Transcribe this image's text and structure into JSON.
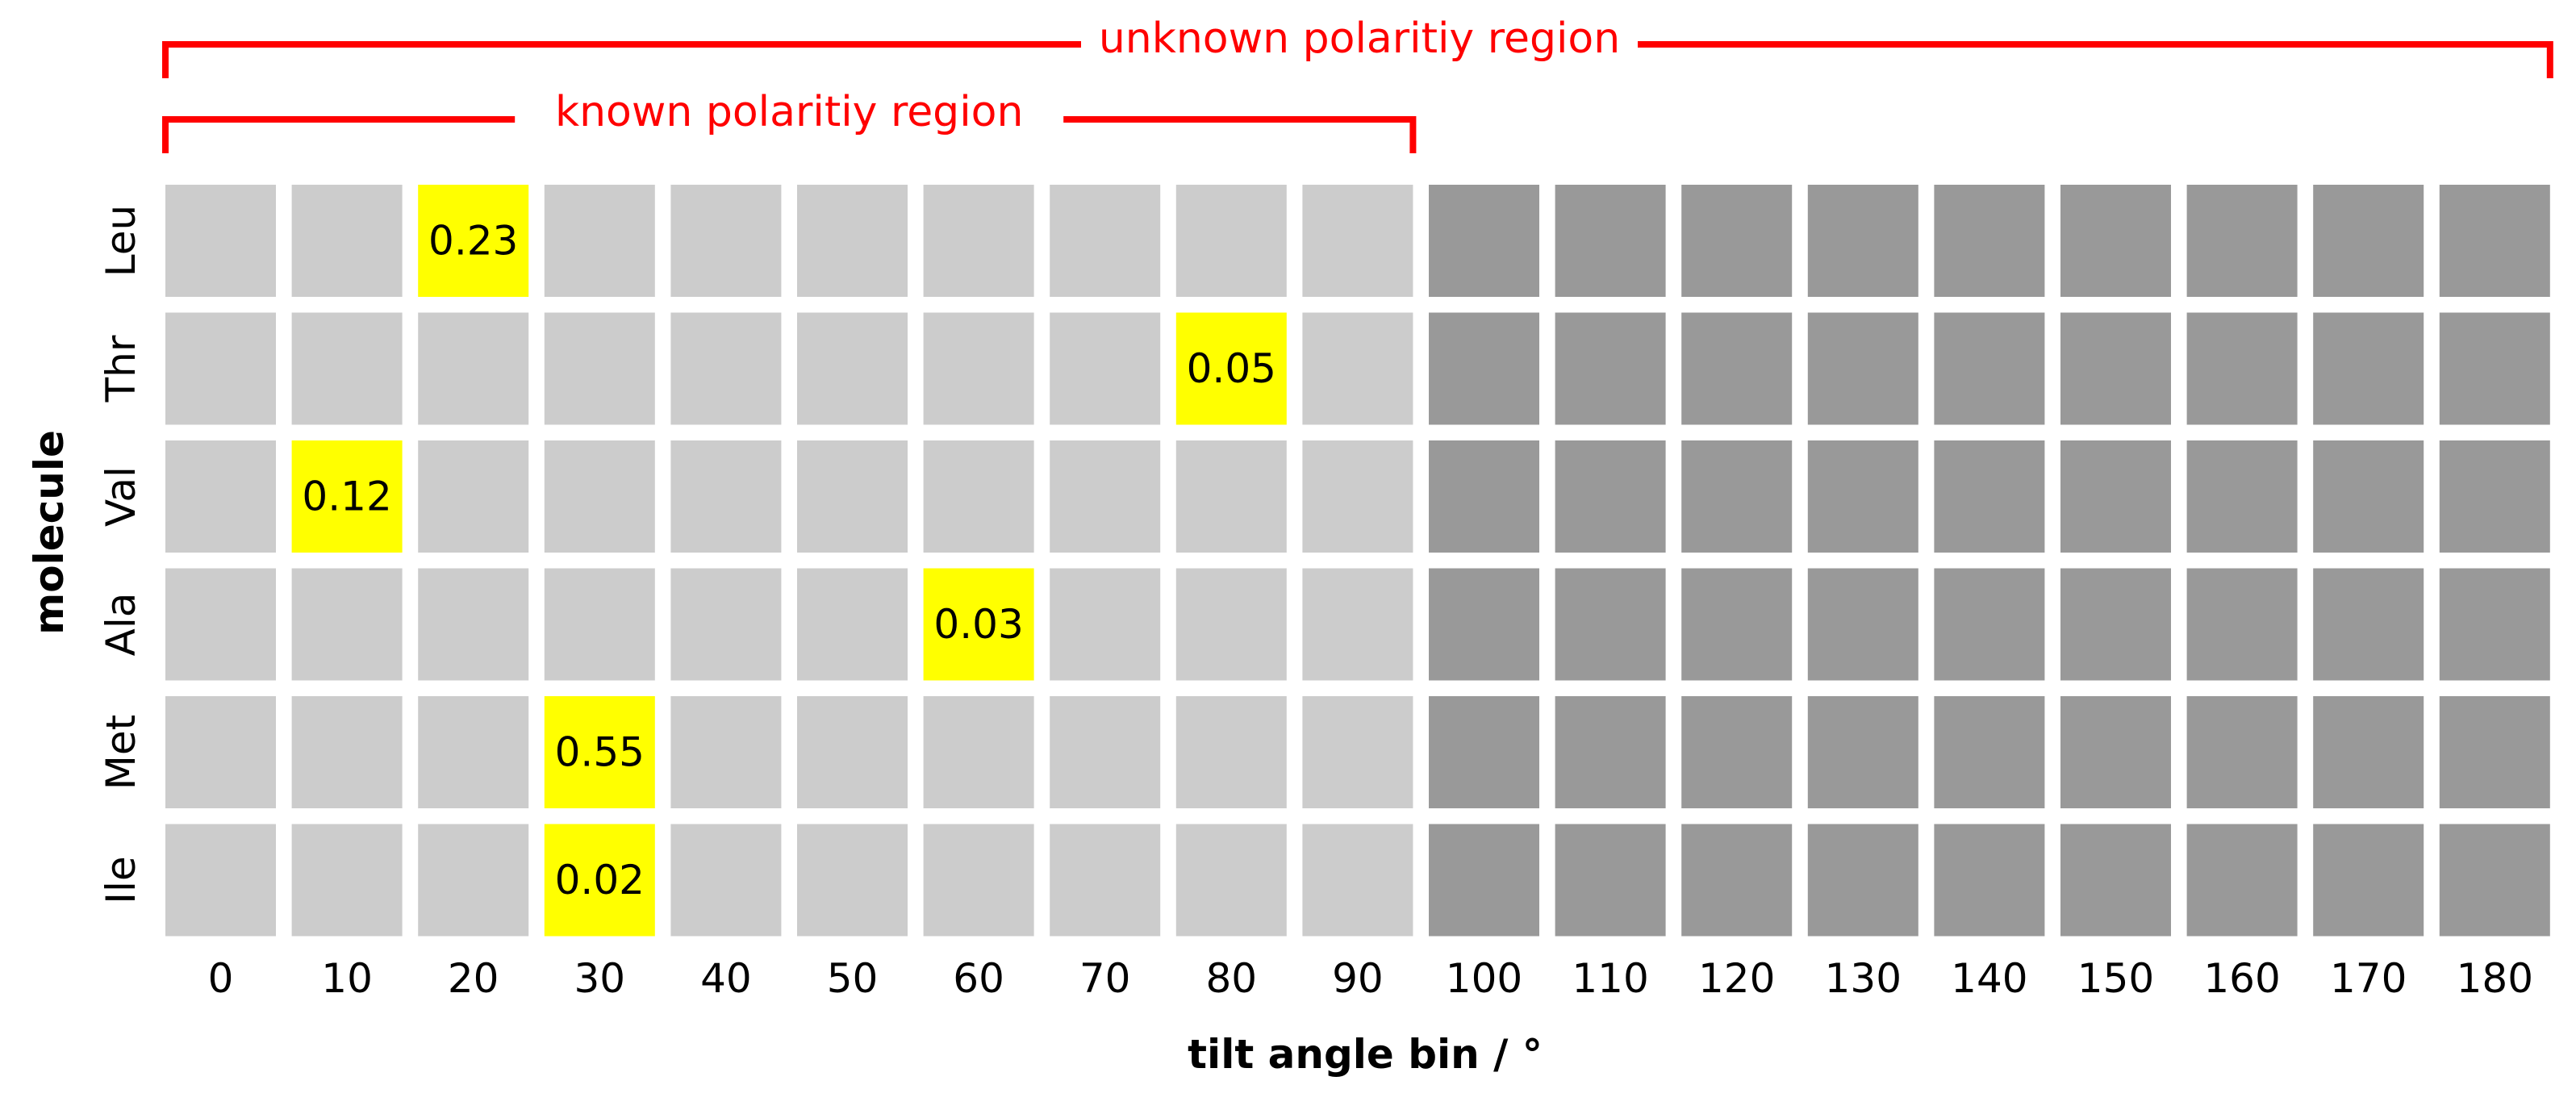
{
  "chart_data": {
    "type": "heatmap",
    "xlabel": "tilt angle bin / °",
    "ylabel": "molecule",
    "x_categories": [
      "0",
      "10",
      "20",
      "30",
      "40",
      "50",
      "60",
      "70",
      "80",
      "90",
      "100",
      "110",
      "120",
      "130",
      "140",
      "150",
      "160",
      "170",
      "180"
    ],
    "y_categories": [
      "Leu",
      "Thr",
      "Val",
      "Ala",
      "Met",
      "Ile"
    ],
    "values": [
      [
        null,
        null,
        0.23,
        null,
        null,
        null,
        null,
        null,
        null,
        null,
        null,
        null,
        null,
        null,
        null,
        null,
        null,
        null,
        null
      ],
      [
        null,
        null,
        null,
        null,
        null,
        null,
        null,
        null,
        0.05,
        null,
        null,
        null,
        null,
        null,
        null,
        null,
        null,
        null,
        null
      ],
      [
        null,
        0.12,
        null,
        null,
        null,
        null,
        null,
        null,
        null,
        null,
        null,
        null,
        null,
        null,
        null,
        null,
        null,
        null,
        null
      ],
      [
        null,
        null,
        null,
        null,
        null,
        null,
        0.03,
        null,
        null,
        null,
        null,
        null,
        null,
        null,
        null,
        null,
        null,
        null,
        null
      ],
      [
        null,
        null,
        null,
        0.55,
        null,
        null,
        null,
        null,
        null,
        null,
        null,
        null,
        null,
        null,
        null,
        null,
        null,
        null,
        null
      ],
      [
        null,
        null,
        null,
        0.02,
        null,
        null,
        null,
        null,
        null,
        null,
        null,
        null,
        null,
        null,
        null,
        null,
        null,
        null,
        null
      ]
    ],
    "value_labels": [
      [
        "",
        "",
        "0.23",
        "",
        "",
        "",
        "",
        "",
        "",
        "",
        "",
        "",
        "",
        "",
        "",
        "",
        "",
        "",
        ""
      ],
      [
        "",
        "",
        "",
        "",
        "",
        "",
        "",
        "",
        "0.05",
        "",
        "",
        "",
        "",
        "",
        "",
        "",
        "",
        "",
        ""
      ],
      [
        "",
        "0.12",
        "",
        "",
        "",
        "",
        "",
        "",
        "",
        "",
        "",
        "",
        "",
        "",
        "",
        "",
        "",
        "",
        ""
      ],
      [
        "",
        "",
        "",
        "",
        "",
        "",
        "0.03",
        "",
        "",
        "",
        "",
        "",
        "",
        "",
        "",
        "",
        "",
        "",
        ""
      ],
      [
        "",
        "",
        "",
        "0.55",
        "",
        "",
        "",
        "",
        "",
        "",
        "",
        "",
        "",
        "",
        "",
        "",
        "",
        "",
        ""
      ],
      [
        "",
        "",
        "",
        "0.02",
        "",
        "",
        "",
        "",
        "",
        "",
        "",
        "",
        "",
        "",
        "",
        "",
        "",
        "",
        ""
      ]
    ],
    "regions": [
      {
        "label": "known polaritiy region",
        "from": "0",
        "to": "90"
      },
      {
        "label": "unknown polaritiy region",
        "from": "0",
        "to": "180"
      }
    ],
    "known_region_last_bin": "90",
    "colors": {
      "known_cell": "#cccccc",
      "unknown_cell": "#999999",
      "highlight_cell": "#ffff00",
      "region_bracket": "#ff0000",
      "text": "#000000"
    }
  }
}
